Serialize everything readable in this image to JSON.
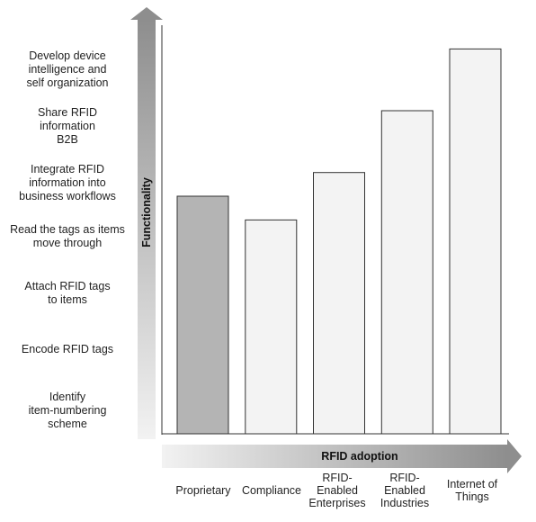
{
  "chart_data": {
    "type": "bar",
    "title": "",
    "xlabel": "RFID adoption",
    "ylabel": "Functionality",
    "categories": [
      "Proprietary",
      "Compliance",
      "RFID-\nEnabled\nEnterprises",
      "RFID-\nEnabled\nIndustries",
      "Internet of\nThings"
    ],
    "values": [
      5.0,
      4.5,
      5.5,
      6.8,
      8.1
    ],
    "ylim": [
      0,
      8.6
    ],
    "y_tick_labels": [
      "Identify\nitem-numbering\nscheme",
      "Encode RFID tags",
      "Attach RFID tags\nto items",
      "Read the tags as items\nmove through",
      "Integrate RFID\ninformation into\nbusiness workflows",
      "Share RFID\ninformation\nB2B",
      "Develop device\nintelligence and\nself organization"
    ],
    "grid": false,
    "legend": "none",
    "colors": {
      "first_bar": "#b4b4b4",
      "other_bars": "#f3f3f3",
      "bar_stroke": "#333333",
      "arrow": "#8c8c8c"
    }
  }
}
